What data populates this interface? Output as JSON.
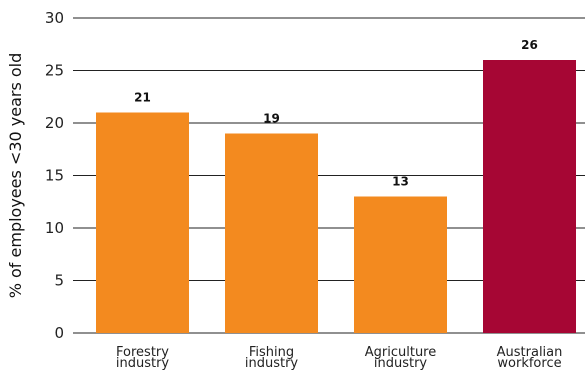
{
  "chart_data": {
    "type": "bar",
    "title": "",
    "xlabel": "",
    "ylabel": "% of employees <30 years old",
    "ylim": [
      0,
      30
    ],
    "yticks": [
      0,
      5,
      10,
      15,
      20,
      25,
      30
    ],
    "grid": true,
    "categories": [
      [
        "Forestry",
        "industry"
      ],
      [
        "Fishing",
        "industry"
      ],
      [
        "Agriculture",
        "industry"
      ],
      [
        "Australian",
        "workforce"
      ]
    ],
    "values": [
      21,
      19,
      13,
      26
    ],
    "colors": [
      "#f38a1f",
      "#f38a1f",
      "#f38a1f",
      "#a60634"
    ],
    "grid_color": "#222222"
  }
}
